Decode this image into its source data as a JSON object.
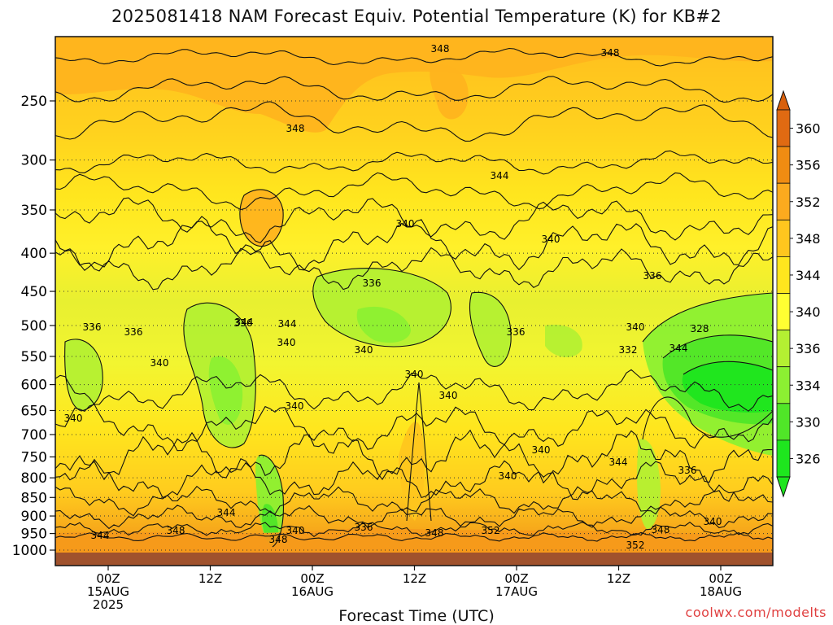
{
  "title": "2025081418 NAM Forecast Equiv. Potential Temperature (K) for KB#2",
  "x_axis_title": "Forecast Time (UTC)",
  "credit": "coolwx.com/modelts",
  "colors": {
    "ground": "#a0522d",
    "contour": "#111111",
    "grid": "#333333",
    "credit": "#e04040"
  },
  "chart_data": {
    "type": "heatmap",
    "title": "2025081418 NAM Forecast Equiv. Potential Temperature (K) for KB#2",
    "xlabel": "Forecast Time (UTC)",
    "ylabel": "",
    "y_axis": {
      "scale": "log",
      "ylim": [
        1000,
        200
      ],
      "ticks": [
        250,
        300,
        350,
        400,
        450,
        500,
        550,
        600,
        650,
        700,
        750,
        800,
        850,
        900,
        950,
        1000
      ]
    },
    "x_axis": {
      "ticks": [
        {
          "label": "00Z",
          "sub1": "15AUG",
          "sub2": "2025"
        },
        {
          "label": "12Z",
          "sub1": "",
          "sub2": ""
        },
        {
          "label": "00Z",
          "sub1": "16AUG",
          "sub2": ""
        },
        {
          "label": "12Z",
          "sub1": "",
          "sub2": ""
        },
        {
          "label": "00Z",
          "sub1": "17AUG",
          "sub2": ""
        },
        {
          "label": "12Z",
          "sub1": "",
          "sub2": ""
        },
        {
          "label": "00Z",
          "sub1": "18AUG",
          "sub2": ""
        }
      ]
    },
    "grid": true,
    "colorbar": {
      "labels": [
        360,
        356,
        352,
        348,
        344,
        340,
        336,
        334,
        330,
        326
      ],
      "colors": [
        "#e06a12",
        "#f08c12",
        "#fcaa1e",
        "#ffc61e",
        "#ffe61e",
        "#ffff32",
        "#b4f032",
        "#8cf032",
        "#50e628",
        "#1ee61e"
      ]
    },
    "contour_labels": [
      {
        "text": "348"
      },
      {
        "text": "348"
      },
      {
        "text": "348"
      },
      {
        "text": "344"
      },
      {
        "text": "340"
      },
      {
        "text": "340"
      },
      {
        "text": "336"
      },
      {
        "text": "336"
      },
      {
        "text": "340"
      },
      {
        "text": "336"
      },
      {
        "text": "336"
      },
      {
        "text": "336"
      },
      {
        "text": "344"
      },
      {
        "text": "340"
      },
      {
        "text": "340"
      },
      {
        "text": "340"
      },
      {
        "text": "336"
      },
      {
        "text": "340"
      },
      {
        "text": "340"
      },
      {
        "text": "332"
      },
      {
        "text": "328"
      },
      {
        "text": "344"
      },
      {
        "text": "340"
      },
      {
        "text": "340"
      },
      {
        "text": "340"
      },
      {
        "text": "340"
      },
      {
        "text": "344"
      },
      {
        "text": "344"
      },
      {
        "text": "336"
      },
      {
        "text": "344"
      },
      {
        "text": "348"
      },
      {
        "text": "340"
      },
      {
        "text": "336"
      },
      {
        "text": "348"
      },
      {
        "text": "352"
      },
      {
        "text": "348"
      },
      {
        "text": "352"
      },
      {
        "text": "348"
      },
      {
        "text": "340"
      },
      {
        "text": "344"
      }
    ]
  }
}
